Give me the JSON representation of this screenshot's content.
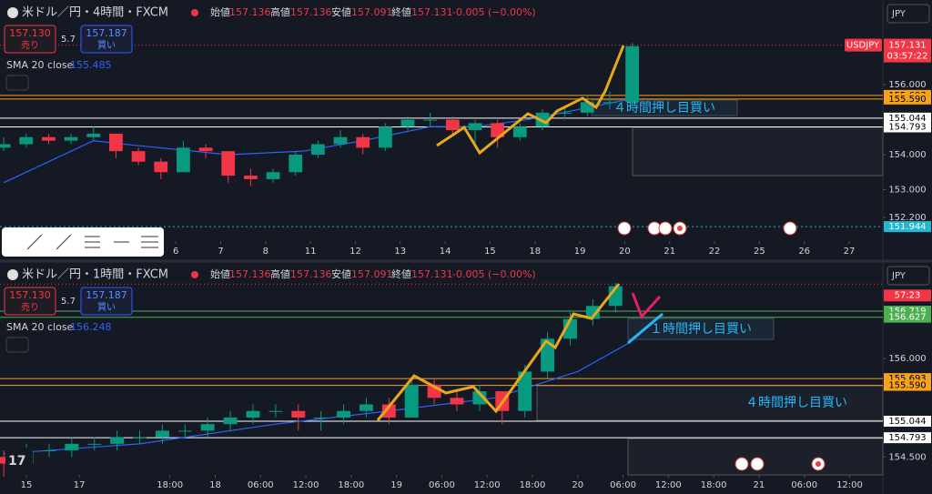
{
  "chart_data": [
    {
      "type": "candlestick",
      "title": "米ドル／円・4時間・FXCM",
      "quote": {
        "open_label": "始値",
        "open": 157.136,
        "high_label": "高値",
        "high": 157.136,
        "low_label": "安値",
        "low": 157.091,
        "close_label": "終値",
        "close": 157.131,
        "change": "-0.005 (−0.00%)"
      },
      "sell": {
        "value": 157.13,
        "label": "157.130",
        "text": "売り"
      },
      "spread": 5.7,
      "buy": {
        "value": 157.187,
        "text": "買い"
      },
      "indicator": {
        "name": "SMA 20 close",
        "value": 155.485,
        "color": "#2962ff"
      },
      "currency": "JPY",
      "up_color": "#089981",
      "down_color": "#f23645",
      "x": [
        0,
        3,
        6,
        9,
        12,
        15,
        18,
        21,
        24,
        27,
        30,
        33,
        36,
        39,
        42,
        45,
        48,
        51,
        54,
        57,
        60,
        63,
        66,
        69,
        72,
        75,
        78,
        81,
        84
      ],
      "open": [
        154.2,
        154.3,
        154.5,
        154.4,
        154.5,
        154.6,
        154.1,
        153.8,
        153.5,
        154.2,
        154.1,
        153.4,
        153.3,
        153.5,
        154.0,
        154.3,
        154.5,
        154.2,
        154.8,
        155.0,
        155.0,
        154.7,
        154.9,
        154.5,
        154.8,
        155.2,
        155.2,
        155.5,
        155.5
      ],
      "high": [
        154.5,
        154.6,
        154.6,
        154.6,
        154.8,
        154.6,
        154.2,
        153.9,
        154.4,
        154.3,
        154.1,
        153.6,
        153.6,
        154.1,
        154.4,
        154.7,
        154.6,
        154.9,
        155.1,
        155.2,
        155.1,
        155.0,
        155.0,
        154.9,
        155.3,
        155.4,
        155.7,
        155.8,
        157.2
      ],
      "low": [
        154.1,
        154.2,
        154.3,
        154.3,
        154.4,
        153.9,
        153.7,
        153.3,
        153.5,
        153.9,
        153.2,
        153.1,
        153.2,
        153.4,
        153.9,
        154.2,
        154.0,
        154.1,
        154.7,
        154.8,
        154.6,
        154.3,
        154.2,
        154.4,
        154.7,
        155.0,
        155.1,
        155.3,
        155.4
      ],
      "close": [
        154.3,
        154.5,
        154.4,
        154.5,
        154.6,
        154.1,
        153.8,
        153.5,
        154.2,
        154.1,
        153.4,
        153.3,
        153.5,
        154.0,
        154.3,
        154.5,
        154.2,
        154.8,
        155.0,
        155.0,
        154.7,
        154.9,
        154.5,
        154.8,
        155.2,
        155.2,
        155.5,
        155.5,
        157.1
      ],
      "sma": {
        "x": [
          0,
          12,
          16,
          30,
          40,
          48,
          57,
          63,
          70,
          77,
          84
        ],
        "values": [
          153.2,
          154.4,
          154.3,
          154.0,
          154.1,
          154.4,
          154.8,
          154.8,
          155.0,
          155.3,
          155.6
        ]
      },
      "xlim": [
        -0.5,
        117.5
      ],
      "xticks": [
        {
          "value": 23,
          "label": "6"
        },
        {
          "value": 29,
          "label": "7"
        },
        {
          "value": 35,
          "label": "8"
        },
        {
          "value": 41,
          "label": "11"
        },
        {
          "value": 47,
          "label": "12"
        },
        {
          "value": 53,
          "label": "13"
        },
        {
          "value": 59,
          "label": "14"
        },
        {
          "value": 65,
          "label": "15"
        },
        {
          "value": 71,
          "label": "18"
        },
        {
          "value": 77,
          "label": "19"
        },
        {
          "value": 83,
          "label": "20"
        },
        {
          "value": 89,
          "label": "21"
        },
        {
          "value": 95,
          "label": "22"
        },
        {
          "value": 101,
          "label": "25"
        },
        {
          "value": 107,
          "label": "26"
        },
        {
          "value": 113,
          "label": "27"
        }
      ],
      "ylim": [
        151.53,
        158.42
      ],
      "yticks": [
        {
          "value": 156,
          "label": "156.000"
        },
        {
          "value": 154,
          "label": "154.000"
        },
        {
          "value": 153,
          "label": "153.000"
        },
        {
          "value": 152.2,
          "label": "152.200"
        }
      ],
      "levels": [
        {
          "value": 155.693,
          "label": "155.693",
          "color": "#f7a21b"
        },
        {
          "value": 155.59,
          "label": "155.590",
          "color": "#f7a21b"
        },
        {
          "value": 155.044,
          "label": "155.044",
          "color": "#ffffff"
        },
        {
          "value": 154.793,
          "label": "154.793",
          "color": "#ffffff"
        },
        {
          "value": 151.944,
          "label": "151.944",
          "color": "#22b8cf"
        }
      ],
      "last_price": {
        "value": 157.131,
        "label": "157.131",
        "symbol": "USDJPY",
        "countdown": "03:57:22"
      },
      "annotations": [
        "４時間押し目買い"
      ]
    },
    {
      "type": "candlestick",
      "title": "米ドル／円・1時間・FXCM",
      "quote": {
        "open_label": "始値",
        "open": 157.136,
        "high_label": "高値",
        "high": 157.136,
        "low_label": "安値",
        "low": 157.091,
        "close_label": "終値",
        "close": 157.131,
        "change": "-0.005 (−0.00%)"
      },
      "sell": {
        "value": 157.13,
        "label": "157.130",
        "text": "売り"
      },
      "spread": 5.7,
      "buy": {
        "value": 157.187,
        "text": "買い"
      },
      "indicator": {
        "name": "SMA 20 close",
        "value": 156.248,
        "color": "#2962ff"
      },
      "currency": "JPY",
      "up_color": "#089981",
      "down_color": "#f23645",
      "x": [
        0,
        3,
        6,
        9,
        12,
        15,
        18,
        21,
        24,
        27,
        30,
        33,
        36,
        39,
        42,
        45,
        48,
        51,
        54,
        57,
        60,
        63,
        66,
        69,
        72,
        75,
        78,
        81
      ],
      "open": [
        154.5,
        154.4,
        154.6,
        154.6,
        154.7,
        154.7,
        154.8,
        154.8,
        154.9,
        154.9,
        155.0,
        155.1,
        155.2,
        155.2,
        155.1,
        155.1,
        155.2,
        155.3,
        155.1,
        155.6,
        155.4,
        155.3,
        155.5,
        155.2,
        155.8,
        156.3,
        156.6,
        156.8
      ],
      "high": [
        154.6,
        154.7,
        154.7,
        154.8,
        154.8,
        154.9,
        154.9,
        155.0,
        155.0,
        155.1,
        155.2,
        155.3,
        155.3,
        155.3,
        155.2,
        155.3,
        155.4,
        155.4,
        155.7,
        155.7,
        155.5,
        155.6,
        155.5,
        155.9,
        156.4,
        156.7,
        156.9,
        157.15
      ],
      "low": [
        154.2,
        154.3,
        154.5,
        154.5,
        154.6,
        154.6,
        154.7,
        154.7,
        154.8,
        154.8,
        154.9,
        155.0,
        155.1,
        154.9,
        154.9,
        155.0,
        155.1,
        155.0,
        155.1,
        155.3,
        155.2,
        155.2,
        155.0,
        155.1,
        155.7,
        156.2,
        156.5,
        156.7
      ],
      "close": [
        154.4,
        154.6,
        154.6,
        154.7,
        154.7,
        154.8,
        154.8,
        154.9,
        154.9,
        155.0,
        155.1,
        155.2,
        155.2,
        155.1,
        155.1,
        155.2,
        155.3,
        155.1,
        155.6,
        155.4,
        155.3,
        155.5,
        155.2,
        155.8,
        156.3,
        156.6,
        156.8,
        157.1
      ],
      "sma": {
        "x": [
          0,
          18,
          36,
          51,
          65,
          76,
          83
        ],
        "values": [
          154.55,
          154.7,
          155.0,
          155.2,
          155.4,
          155.8,
          156.25
        ]
      },
      "xlim": [
        -0.5,
        116.4
      ],
      "xticks": [
        {
          "value": 3,
          "label": "15"
        },
        {
          "value": 10,
          "label": "17"
        },
        {
          "value": 22,
          "label": "18:00"
        },
        {
          "value": 28,
          "label": "18"
        },
        {
          "value": 34,
          "label": "06:00"
        },
        {
          "value": 40,
          "label": "12:00"
        },
        {
          "value": 46,
          "label": "18:00"
        },
        {
          "value": 52,
          "label": "19"
        },
        {
          "value": 58,
          "label": "06:00"
        },
        {
          "value": 64,
          "label": "12:00"
        },
        {
          "value": 70,
          "label": "18:00"
        },
        {
          "value": 76,
          "label": "20"
        },
        {
          "value": 82,
          "label": "06:00"
        },
        {
          "value": 88,
          "label": "12:00"
        },
        {
          "value": 94,
          "label": "18:00"
        },
        {
          "value": 100,
          "label": "21"
        },
        {
          "value": 106,
          "label": "06:00"
        },
        {
          "value": 112,
          "label": "12:00"
        }
      ],
      "ylim": [
        154.227,
        157.44
      ],
      "yticks": [
        {
          "value": 156,
          "label": "156.000"
        },
        {
          "value": 154.5,
          "label": "154.500"
        }
      ],
      "levels": [
        {
          "value": 156.719,
          "label": "156.719",
          "color": "#4caf50"
        },
        {
          "value": 156.627,
          "label": "156.627",
          "color": "#4caf50"
        },
        {
          "value": 155.693,
          "label": "155.693",
          "color": "#f7a21b"
        },
        {
          "value": 155.59,
          "label": "155.590",
          "color": "#f7a21b"
        },
        {
          "value": 155.044,
          "label": "155.044",
          "color": "#ffffff"
        },
        {
          "value": 154.793,
          "label": "154.793",
          "color": "#ffffff"
        }
      ],
      "last_price": {
        "value": 157.131,
        "countdown": "57:23"
      },
      "annotations": [
        "１時間押し目買い",
        "４時間押し目買い"
      ]
    }
  ]
}
